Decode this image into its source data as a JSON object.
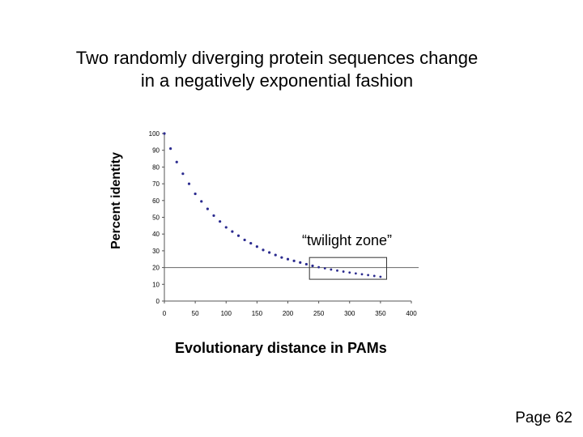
{
  "page": {
    "title_line1": "Two randomly diverging protein sequences change",
    "title_line2": "in a negatively exponential fashion",
    "page_number": "Page 62"
  },
  "colors": {
    "curve": "#2b2b8f",
    "axis": "#555555",
    "reference_line": "#666666",
    "box": "#333333"
  },
  "chart_data": {
    "type": "scatter",
    "title": "",
    "xlabel": "Evolutionary distance in PAMs",
    "ylabel": "Percent identity",
    "xlim": [
      0,
      400
    ],
    "ylim": [
      0,
      100
    ],
    "x_ticks": [
      0,
      50,
      100,
      150,
      200,
      250,
      300,
      350,
      400
    ],
    "y_ticks": [
      0,
      10,
      20,
      30,
      40,
      50,
      60,
      70,
      80,
      90,
      100
    ],
    "grid": false,
    "reference_line_y": 20,
    "series": [
      {
        "x": [
          0,
          10,
          20,
          30,
          40,
          50,
          60,
          70,
          80,
          90,
          100,
          110,
          120,
          130,
          140,
          150,
          160,
          170,
          180,
          190,
          200,
          210,
          220,
          230,
          240,
          250,
          260,
          270,
          280,
          290,
          300,
          310,
          320,
          330,
          340,
          350
        ],
        "y": [
          100,
          91,
          83,
          76,
          70,
          64,
          59.5,
          55,
          51,
          47.5,
          44,
          41.5,
          39,
          36.5,
          34.5,
          32.5,
          30.5,
          29,
          27.5,
          26,
          25,
          24,
          23,
          22,
          21,
          20.2,
          19.5,
          18.8,
          18.2,
          17.6,
          17,
          16.5,
          16,
          15.5,
          15,
          14.5
        ]
      }
    ],
    "annotations": [
      {
        "text": "“twilight zone”",
        "x_range": [
          235,
          360
        ],
        "y_range": [
          13,
          26
        ]
      }
    ]
  }
}
